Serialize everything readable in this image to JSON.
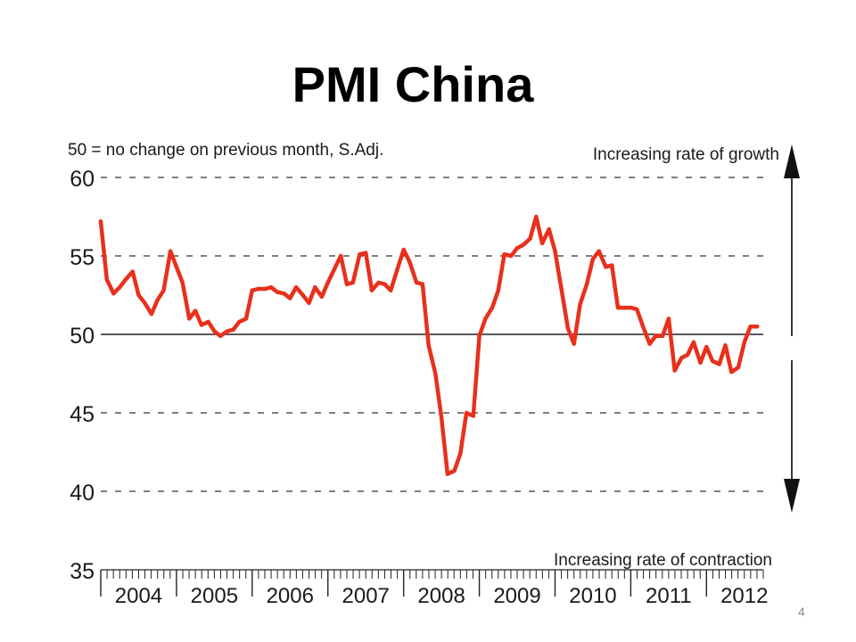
{
  "slide": {
    "title": "PMI China",
    "page_number": "4"
  },
  "chart_data": {
    "type": "line",
    "title": "PMI China",
    "note": "50 = no change on previous month, S.Adj.",
    "annotation_top": "Increasing rate of growth",
    "annotation_bottom": "Increasing rate of contraction",
    "ylim": [
      35,
      60
    ],
    "yticks": [
      "60",
      "55",
      "50",
      "45",
      "40",
      "35"
    ],
    "xlim": [
      2004.0,
      2012.75
    ],
    "years": [
      "2004",
      "2005",
      "2006",
      "2007",
      "2008",
      "2009",
      "2010",
      "2011",
      "2012"
    ],
    "grid": "dashed horizontal at 40, 45, 55, 60; solid line at 50",
    "line_color": "#e8301c",
    "series": [
      {
        "name": "",
        "x": [
          2004.0,
          2004.08,
          2004.17,
          2004.25,
          2004.33,
          2004.42,
          2004.5,
          2004.58,
          2004.67,
          2004.75,
          2004.83,
          2004.92,
          2005.0,
          2005.08,
          2005.17,
          2005.25,
          2005.33,
          2005.42,
          2005.5,
          2005.58,
          2005.67,
          2005.75,
          2005.83,
          2005.92,
          2006.0,
          2006.08,
          2006.17,
          2006.25,
          2006.33,
          2006.42,
          2006.5,
          2006.58,
          2006.67,
          2006.75,
          2006.83,
          2006.92,
          2007.0,
          2007.08,
          2007.17,
          2007.25,
          2007.33,
          2007.42,
          2007.5,
          2007.58,
          2007.67,
          2007.75,
          2007.83,
          2007.92,
          2008.0,
          2008.08,
          2008.17,
          2008.25,
          2008.33,
          2008.42,
          2008.5,
          2008.58,
          2008.67,
          2008.75,
          2008.83,
          2008.92,
          2009.0,
          2009.08,
          2009.17,
          2009.25,
          2009.33,
          2009.42,
          2009.5,
          2009.58,
          2009.67,
          2009.75,
          2009.83,
          2009.92,
          2010.0,
          2010.08,
          2010.17,
          2010.25,
          2010.33,
          2010.42,
          2010.5,
          2010.58,
          2010.67,
          2010.75,
          2010.83,
          2010.92,
          2011.0,
          2011.08,
          2011.17,
          2011.25,
          2011.33,
          2011.42,
          2011.5,
          2011.58,
          2011.67,
          2011.75,
          2011.83,
          2011.92,
          2012.0,
          2012.08,
          2012.17,
          2012.25,
          2012.33,
          2012.42,
          2012.5,
          2012.58,
          2012.67
        ],
        "values": [
          57.2,
          53.5,
          52.6,
          53.0,
          53.5,
          54.0,
          52.5,
          52.0,
          51.3,
          52.2,
          52.8,
          55.3,
          54.3,
          53.3,
          51.0,
          51.5,
          50.6,
          50.8,
          50.2,
          49.9,
          50.2,
          50.3,
          50.8,
          51.0,
          52.8,
          52.9,
          52.9,
          53.0,
          52.7,
          52.6,
          52.3,
          53.0,
          52.5,
          52.0,
          53.0,
          52.4,
          53.3,
          54.1,
          55.0,
          53.2,
          53.3,
          55.1,
          55.2,
          52.8,
          53.3,
          53.2,
          52.8,
          54.2,
          55.4,
          54.6,
          53.3,
          53.2,
          49.3,
          47.5,
          44.7,
          41.1,
          41.3,
          42.4,
          45.0,
          44.8,
          49.9,
          51.0,
          51.7,
          52.8,
          55.1,
          55.0,
          55.5,
          55.7,
          56.1,
          57.5,
          55.8,
          56.7,
          55.3,
          53.0,
          50.4,
          49.4,
          51.9,
          53.2,
          54.8,
          55.3,
          54.3,
          54.4,
          51.7,
          51.7,
          51.7,
          51.6,
          50.4,
          49.4,
          49.9,
          49.9,
          51.0,
          47.7,
          48.5,
          48.7,
          49.5,
          48.2,
          49.2,
          48.3,
          48.1,
          49.3,
          47.6,
          47.9,
          49.5,
          50.5,
          50.5
        ]
      }
    ]
  }
}
